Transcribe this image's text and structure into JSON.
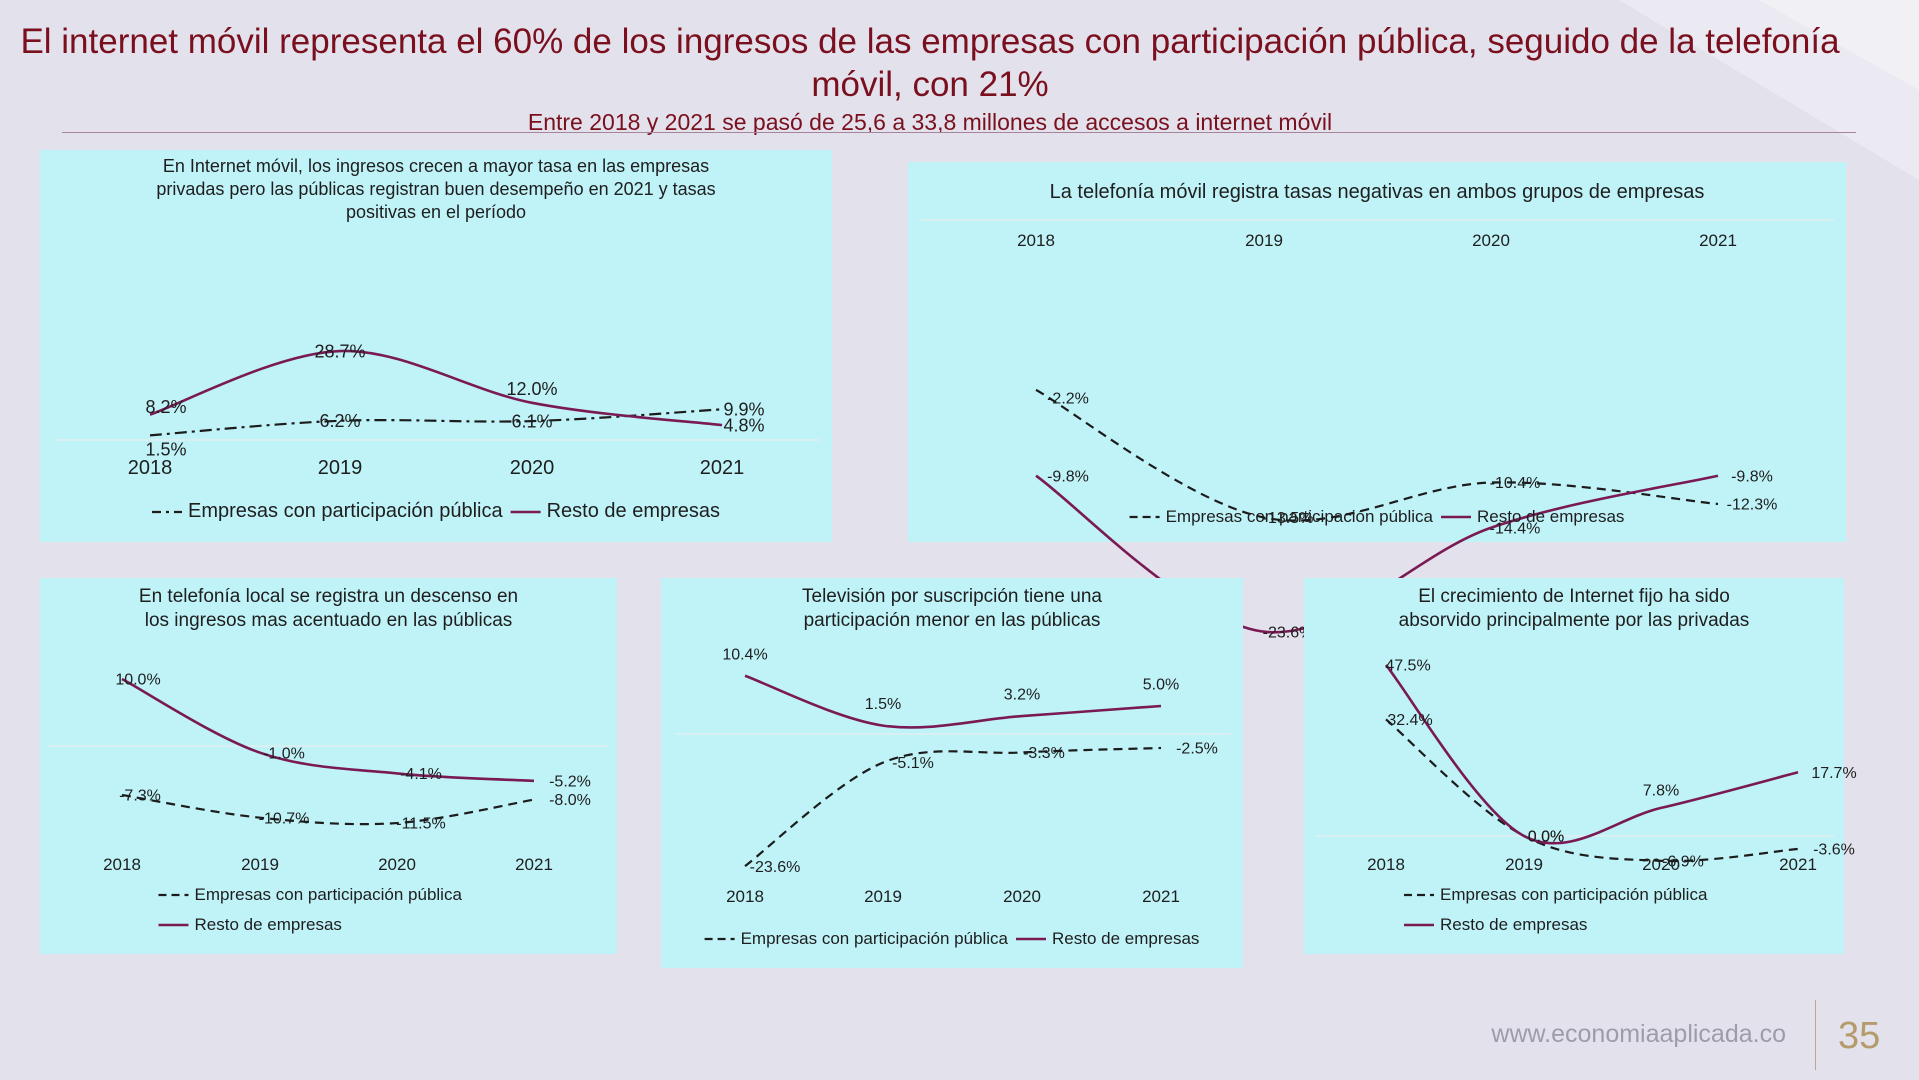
{
  "header": {
    "title": "El internet móvil representa el 60% de los ingresos de las empresas con participación pública, seguido de la telefonía móvil, con 21%",
    "subtitle": "Entre 2018 y 2021 se pasó de 25,6  a 33,8 millones de accesos a internet móvil"
  },
  "footer": {
    "url": "www.economiaaplicada.co",
    "page_number": "35"
  },
  "colors": {
    "series_solid": "#7a1a55",
    "series_dashed": "#1c1c1c",
    "panel_bg": "#c0f3f8",
    "title": "#7a0f1e"
  },
  "chart_data": [
    {
      "id": "internet-movil",
      "type": "line",
      "title": "En Internet móvil, los ingresos crecen a mayor tasa en las empresas privadas pero las públicas registran buen desempeño en 2021 y tasas positivas en el período",
      "categories": [
        "2018",
        "2019",
        "2020",
        "2021"
      ],
      "series": [
        {
          "name": "Empresas con participación pública",
          "style": "dashdot",
          "values": [
            1.5,
            6.2,
            6.1,
            9.9
          ],
          "labels": [
            "1.5%",
            "6.2%",
            "6.1%",
            "9.9%"
          ]
        },
        {
          "name": "Resto de empresas",
          "style": "solid",
          "values": [
            8.2,
            28.7,
            12.0,
            4.8
          ],
          "labels": [
            "8.2%",
            "28.7%",
            "12.0%",
            "4.8%"
          ]
        }
      ],
      "legend_position": "bottom"
    },
    {
      "id": "telefonia-movil",
      "type": "line",
      "title": "La telefonía móvil registra tasas negativas en ambos grupos de empresas",
      "categories": [
        "2018",
        "2019",
        "2020",
        "2021"
      ],
      "series": [
        {
          "name": "Empresas con participación pública",
          "style": "dashed",
          "values": [
            -2.2,
            -13.5,
            -10.4,
            -12.3
          ],
          "labels": [
            "-2.2%",
            "-13.5%",
            "-10.4%",
            "-12.3%"
          ]
        },
        {
          "name": "Resto de empresas",
          "style": "solid",
          "values": [
            -9.8,
            -23.6,
            -14.4,
            -9.8
          ],
          "labels": [
            "-9.8%",
            "-23.6%",
            "-14.4%",
            "-9.8%"
          ]
        }
      ],
      "legend_position": "bottom"
    },
    {
      "id": "telefonia-local",
      "type": "line",
      "title": "En telefonía local se registra un descenso en los ingresos mas acentuado en las públicas",
      "categories": [
        "2018",
        "2019",
        "2020",
        "2021"
      ],
      "series": [
        {
          "name": "Empresas con participación pública",
          "style": "dashed",
          "values": [
            -7.3,
            -10.7,
            -11.5,
            -8.0
          ],
          "labels": [
            "-7.3%",
            "-10.7%",
            "-11.5%",
            "-8.0%"
          ]
        },
        {
          "name": "Resto de empresas",
          "style": "solid",
          "values": [
            10.0,
            -1.0,
            -4.1,
            -5.2
          ],
          "labels": [
            "10.0%",
            "-1.0%",
            "-4.1%",
            "-5.2%"
          ]
        }
      ],
      "legend_position": "bottom"
    },
    {
      "id": "television-suscripcion",
      "type": "line",
      "title": "Televisión por suscripción tiene una participación menor en las públicas",
      "categories": [
        "2018",
        "2019",
        "2020",
        "2021"
      ],
      "series": [
        {
          "name": "Empresas con participación pública",
          "style": "dashed",
          "values": [
            -23.6,
            -5.1,
            -3.3,
            -2.5
          ],
          "labels": [
            "-23.6%",
            "-5.1%",
            "-3.3%",
            "-2.5%"
          ]
        },
        {
          "name": "Resto de empresas",
          "style": "solid",
          "values": [
            10.4,
            1.5,
            3.2,
            5.0
          ],
          "labels": [
            "10.4%",
            "1.5%",
            "3.2%",
            "5.0%"
          ]
        }
      ],
      "legend_position": "bottom"
    },
    {
      "id": "internet-fijo",
      "type": "line",
      "title": "El crecimiento de Internet fijo ha sido absorvido principalmente por las privadas",
      "categories": [
        "2018",
        "2019",
        "2020",
        "2021"
      ],
      "series": [
        {
          "name": "Empresas con participación pública",
          "style": "dashed",
          "values": [
            32.4,
            0.0,
            -6.9,
            -3.6
          ],
          "labels": [
            "32.4%",
            "0.0%",
            "-6.9%",
            "-3.6%"
          ]
        },
        {
          "name": "Resto de empresas",
          "style": "solid",
          "values": [
            47.5,
            0.0,
            7.8,
            17.7
          ],
          "labels": [
            "47.5%",
            "0.0%",
            "7.8%",
            "17.7%"
          ]
        }
      ],
      "legend_position": "bottom"
    }
  ]
}
